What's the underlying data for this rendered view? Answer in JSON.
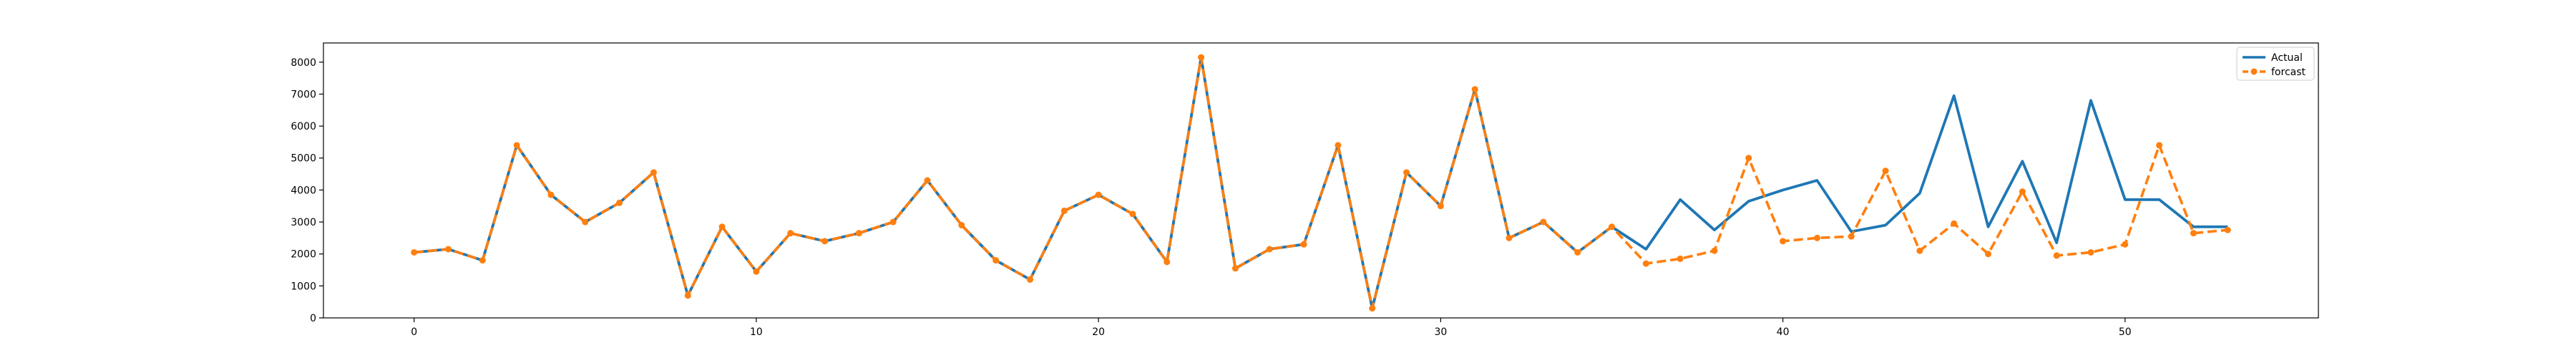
{
  "chart_data": {
    "type": "line",
    "title": "",
    "xlabel": "",
    "ylabel": "",
    "xlim": [
      -2.65,
      55.65
    ],
    "ylim": [
      0,
      8600
    ],
    "x_ticks": [
      0,
      10,
      20,
      30,
      40,
      50
    ],
    "y_ticks": [
      0,
      1000,
      2000,
      3000,
      4000,
      5000,
      6000,
      7000,
      8000
    ],
    "grid": false,
    "legend_position": "top-right",
    "series": [
      {
        "name": "Actual",
        "color": "#1f77b4",
        "style": "solid",
        "marker": "none",
        "x": [
          0,
          1,
          2,
          3,
          4,
          5,
          6,
          7,
          8,
          9,
          10,
          11,
          12,
          13,
          14,
          15,
          16,
          17,
          18,
          19,
          20,
          21,
          22,
          23,
          24,
          25,
          26,
          27,
          28,
          29,
          30,
          31,
          32,
          33,
          34,
          35,
          36,
          37,
          38,
          39,
          40,
          41,
          42,
          43,
          44,
          45,
          46,
          47,
          48,
          49,
          50,
          51,
          52,
          53
        ],
        "values": [
          2050,
          2150,
          1800,
          5400,
          3850,
          3000,
          3600,
          4550,
          700,
          2850,
          1450,
          2650,
          2400,
          2650,
          3000,
          4300,
          2900,
          1800,
          1200,
          3350,
          3850,
          3250,
          1750,
          8150,
          1550,
          2150,
          2300,
          5400,
          300,
          4550,
          3500,
          7150,
          2500,
          3000,
          2050,
          2850,
          2150,
          3700,
          2750,
          3650,
          4000,
          4300,
          2700,
          2900,
          3900,
          6950,
          2850,
          4900,
          2350,
          6800,
          3700,
          3700,
          2850,
          2850
        ]
      },
      {
        "name": "forcast",
        "color": "#ff7f0e",
        "style": "dashed",
        "marker": "circle",
        "x": [
          0,
          1,
          2,
          3,
          4,
          5,
          6,
          7,
          8,
          9,
          10,
          11,
          12,
          13,
          14,
          15,
          16,
          17,
          18,
          19,
          20,
          21,
          22,
          23,
          24,
          25,
          26,
          27,
          28,
          29,
          30,
          31,
          32,
          33,
          34,
          35,
          36,
          37,
          38,
          39,
          40,
          41,
          42,
          43,
          44,
          45,
          46,
          47,
          48,
          49,
          50,
          51,
          52,
          53
        ],
        "values": [
          2050,
          2150,
          1800,
          5400,
          3850,
          3000,
          3600,
          4550,
          700,
          2850,
          1450,
          2650,
          2400,
          2650,
          3000,
          4300,
          2900,
          1800,
          1200,
          3350,
          3850,
          3250,
          1750,
          8150,
          1550,
          2150,
          2300,
          5400,
          300,
          4550,
          3500,
          7150,
          2500,
          3000,
          2050,
          2850,
          1700,
          1850,
          2100,
          5000,
          2400,
          2500,
          2550,
          4600,
          2100,
          2950,
          2000,
          3950,
          1950,
          2050,
          2300,
          5400,
          2650,
          2750
        ]
      }
    ]
  }
}
